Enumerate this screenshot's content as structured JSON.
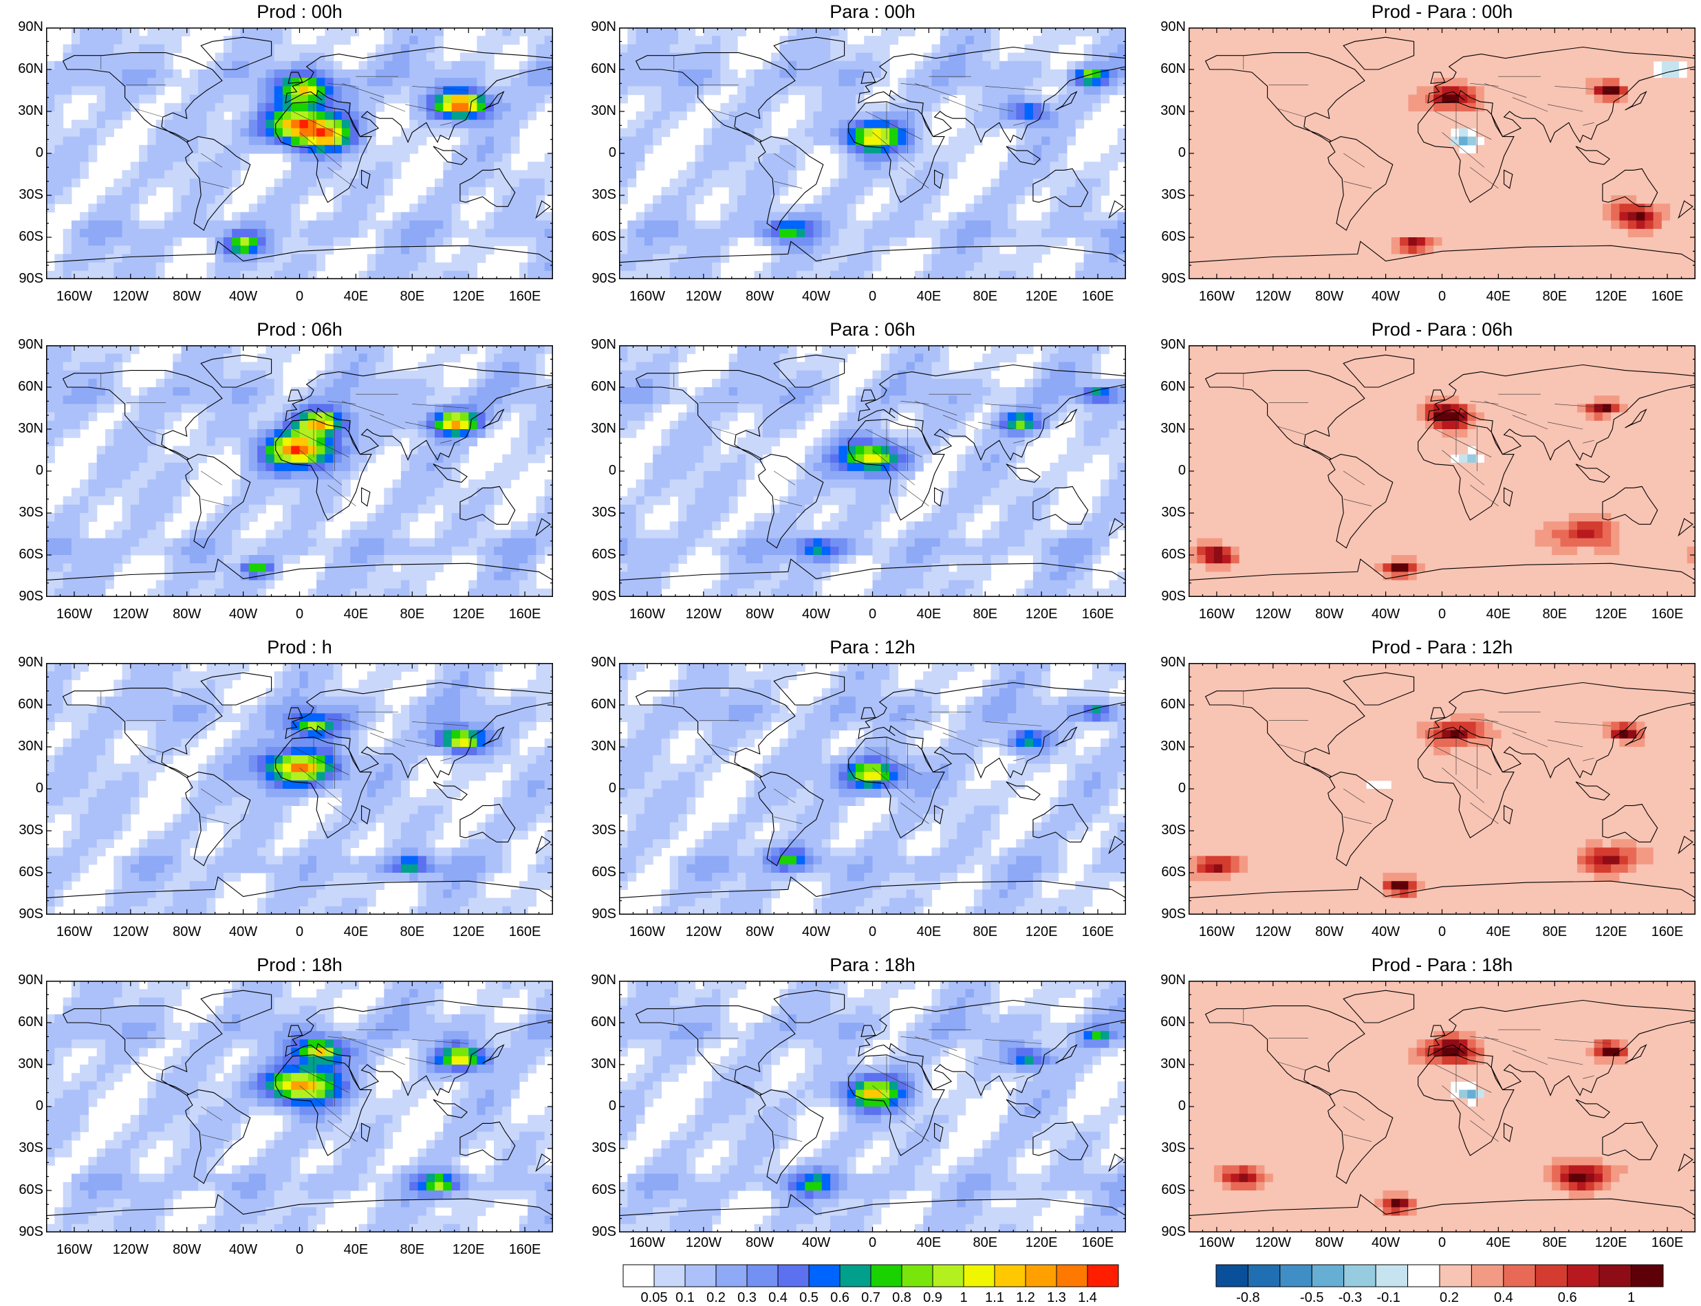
{
  "panels": [
    {
      "title": "Prod : 00h",
      "kind": "field",
      "blobs": [
        [
          0,
          20,
          1.0,
          0.3,
          14
        ],
        [
          20,
          12,
          0.6,
          0.25,
          10
        ],
        [
          115,
          35,
          1.2,
          0.22,
          10
        ],
        [
          -40,
          -65,
          0.6,
          0.25,
          8
        ],
        [
          5,
          45,
          0.7,
          0.3,
          12
        ]
      ]
    },
    {
      "title": "Para : 00h",
      "kind": "field",
      "blobs": [
        [
          0,
          12,
          0.8,
          0.25,
          12
        ],
        [
          110,
          30,
          0.5,
          0.2,
          8
        ],
        [
          155,
          55,
          0.6,
          0.2,
          6
        ],
        [
          -60,
          -55,
          0.4,
          0.25,
          10
        ]
      ]
    },
    {
      "title": "Prod - Para : 00h",
      "kind": "diff",
      "blobs": [
        [
          5,
          40,
          0.5,
          0.22,
          10
        ],
        [
          120,
          45,
          0.7,
          0.12,
          6
        ],
        [
          -20,
          -65,
          0.6,
          0.12,
          6
        ],
        [
          140,
          -45,
          0.5,
          0.1,
          10
        ],
        [
          15,
          10,
          -0.3,
          0.15,
          6
        ],
        [
          160,
          60,
          -0.4,
          0.1,
          5
        ]
      ]
    },
    {
      "title": "Prod : 06h",
      "kind": "field",
      "blobs": [
        [
          0,
          15,
          1.0,
          0.28,
          14
        ],
        [
          15,
          35,
          0.8,
          0.3,
          10
        ],
        [
          110,
          35,
          1.0,
          0.22,
          9
        ],
        [
          -30,
          -70,
          0.6,
          0.2,
          6
        ]
      ]
    },
    {
      "title": "Para : 06h",
      "kind": "field",
      "blobs": [
        [
          0,
          10,
          0.8,
          0.25,
          12
        ],
        [
          105,
          35,
          0.6,
          0.2,
          8
        ],
        [
          160,
          55,
          0.5,
          0.2,
          6
        ],
        [
          -40,
          -55,
          0.4,
          0.22,
          10
        ]
      ]
    },
    {
      "title": "Prod - Para : 06h",
      "kind": "diff",
      "blobs": [
        [
          5,
          40,
          0.6,
          0.2,
          10
        ],
        [
          115,
          45,
          0.6,
          0.1,
          6
        ],
        [
          -30,
          -70,
          0.7,
          0.12,
          6
        ],
        [
          100,
          -45,
          0.4,
          0.1,
          12
        ],
        [
          -160,
          -60,
          0.5,
          0.12,
          8
        ],
        [
          20,
          10,
          -0.3,
          0.15,
          6
        ]
      ]
    },
    {
      "title": "Prod : h",
      "kind": "field",
      "blobs": [
        [
          0,
          15,
          1.0,
          0.28,
          14
        ],
        [
          115,
          35,
          0.9,
          0.22,
          9
        ],
        [
          10,
          45,
          0.6,
          0.3,
          10
        ],
        [
          80,
          -55,
          0.5,
          0.25,
          8
        ]
      ]
    },
    {
      "title": "Para : 12h",
      "kind": "field",
      "blobs": [
        [
          0,
          10,
          0.8,
          0.25,
          12
        ],
        [
          110,
          35,
          0.5,
          0.2,
          8
        ],
        [
          160,
          55,
          0.5,
          0.2,
          6
        ],
        [
          -60,
          -50,
          0.4,
          0.22,
          10
        ]
      ]
    },
    {
      "title": "Prod - Para : 12h",
      "kind": "diff",
      "blobs": [
        [
          10,
          40,
          0.5,
          0.22,
          10
        ],
        [
          130,
          40,
          0.6,
          0.1,
          6
        ],
        [
          -30,
          -70,
          0.6,
          0.1,
          6
        ],
        [
          120,
          -50,
          0.5,
          0.1,
          10
        ],
        [
          -160,
          -55,
          0.5,
          0.12,
          8
        ],
        [
          -40,
          5,
          -0.2,
          0.12,
          6
        ]
      ]
    },
    {
      "title": "Prod : 18h",
      "kind": "field",
      "blobs": [
        [
          0,
          15,
          1.0,
          0.28,
          14
        ],
        [
          15,
          40,
          0.8,
          0.3,
          10
        ],
        [
          115,
          35,
          0.9,
          0.22,
          9
        ],
        [
          100,
          -55,
          0.6,
          0.25,
          8
        ]
      ]
    },
    {
      "title": "Para : 18h",
      "kind": "field",
      "blobs": [
        [
          0,
          10,
          0.8,
          0.25,
          12
        ],
        [
          110,
          35,
          0.5,
          0.2,
          8
        ],
        [
          160,
          50,
          0.4,
          0.2,
          6
        ],
        [
          -40,
          -55,
          0.4,
          0.22,
          10
        ]
      ]
    },
    {
      "title": "Prod - Para : 18h",
      "kind": "diff",
      "blobs": [
        [
          5,
          40,
          0.6,
          0.22,
          10
        ],
        [
          120,
          40,
          0.6,
          0.1,
          6
        ],
        [
          -30,
          -70,
          0.6,
          0.1,
          6
        ],
        [
          100,
          -50,
          0.6,
          0.1,
          10
        ],
        [
          -140,
          -50,
          0.5,
          0.12,
          8
        ],
        [
          20,
          10,
          -0.3,
          0.15,
          6
        ]
      ]
    }
  ],
  "lat_ticks": [
    "90N",
    "60N",
    "30N",
    "0",
    "30S",
    "60S",
    "90S"
  ],
  "lon_ticks": [
    "160W",
    "120W",
    "80W",
    "40W",
    "0",
    "40E",
    "80E",
    "120E",
    "160E"
  ],
  "colorbars": {
    "field": {
      "labels": [
        "0.05",
        "0.1",
        "0.2",
        "0.3",
        "0.4",
        "0.5",
        "0.6",
        "0.7",
        "0.8",
        "0.9",
        "1",
        "1.1",
        "1.2",
        "1.3",
        "1.4"
      ],
      "colors": [
        "#ffffff",
        "#c9d7fb",
        "#acc1fa",
        "#8ea9f6",
        "#7390f3",
        "#5b71ef",
        "#0064ff",
        "#00a08c",
        "#19d200",
        "#78e60a",
        "#b4f01e",
        "#f0f500",
        "#ffc800",
        "#ffa000",
        "#ff7800",
        "#ff1e00"
      ]
    },
    "diff": {
      "labels": [
        "-0.8",
        "-0.5",
        "-0.3",
        "-0.1",
        "0.2",
        "0.4",
        "0.6",
        "1"
      ],
      "colors": [
        "#0a4f9a",
        "#1f6fb2",
        "#3f8fc6",
        "#66aed4",
        "#96cbe0",
        "#c5e4ef",
        "#ffffff",
        "#f8c4b4",
        "#f39a85",
        "#e86a56",
        "#d43c30",
        "#b8191e",
        "#8e0c15",
        "#5e0008"
      ]
    }
  }
}
